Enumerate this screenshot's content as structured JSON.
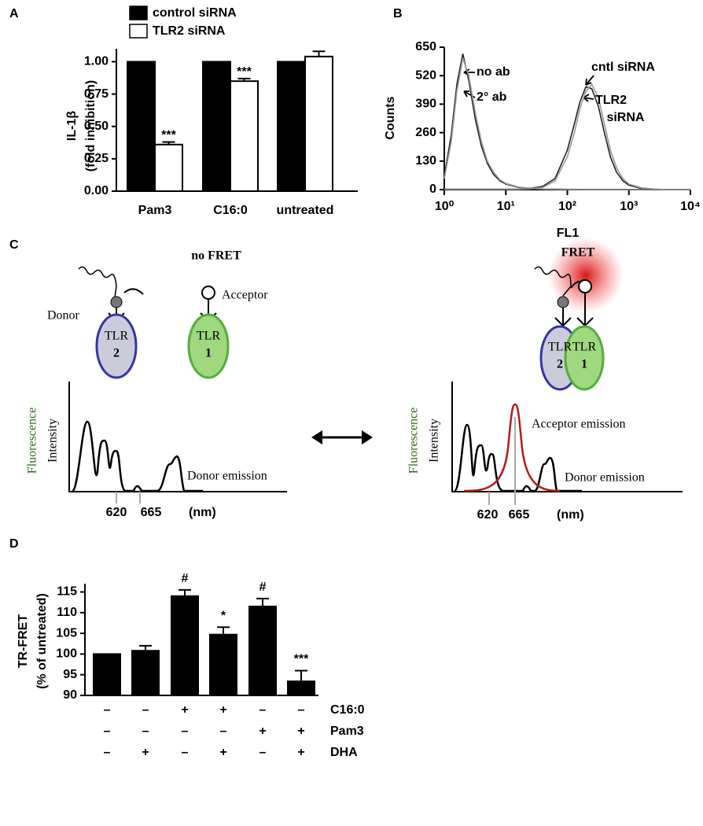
{
  "chart_data": [
    {
      "type": "bar",
      "panel_label": "A",
      "y_label": [
        "IL-1β",
        "(fold inhibition)"
      ],
      "categories": [
        "Pam3",
        "C16:0",
        "untreated"
      ],
      "series": [
        {
          "name": "control siRNA",
          "color": "#000000",
          "values": [
            1,
            1,
            1
          ]
        },
        {
          "name": "TLR2 siRNA",
          "color": "#ffffff",
          "values": [
            0.36,
            0.85,
            1.04
          ],
          "errors": [
            0.02,
            0.02,
            0.04
          ],
          "annotations": [
            "***",
            "***",
            null
          ]
        }
      ],
      "ylim": [
        0,
        1.1
      ],
      "yticks": [
        {
          "value": 0,
          "label": "0.00"
        },
        0.25,
        {
          "value": 0.5,
          "label": "0.50"
        },
        0.75,
        {
          "value": 1,
          "label": "1.00"
        }
      ]
    },
    {
      "type": "line",
      "panel_label": "B",
      "x_label": "FL1",
      "y_label": "Counts",
      "log_x": true,
      "x": [
        1,
        1.3,
        1.6,
        2,
        2.5,
        3.2,
        4,
        5,
        6.3,
        8,
        10,
        16,
        25,
        40,
        63,
        100,
        130,
        160,
        200,
        250,
        320,
        400,
        500,
        630,
        800,
        1000,
        1600,
        2500,
        4000,
        10000
      ],
      "series": [
        {
          "name": "no ab",
          "color": "#222222",
          "values": [
            60,
            250,
            480,
            620,
            500,
            320,
            200,
            120,
            70,
            40,
            25,
            10,
            5,
            3,
            2,
            1,
            1,
            0,
            0,
            0,
            0,
            0,
            0,
            0,
            0,
            0,
            0,
            0,
            0,
            0
          ]
        },
        {
          "name": "2° ab",
          "color": "#999999",
          "values": [
            50,
            220,
            450,
            600,
            520,
            350,
            220,
            130,
            80,
            45,
            28,
            12,
            6,
            3,
            2,
            1,
            0,
            0,
            0,
            0,
            0,
            0,
            0,
            0,
            0,
            0,
            0,
            0,
            0,
            0
          ]
        },
        {
          "name": "cntl siRNA",
          "color": "#222222",
          "values": [
            2,
            2,
            2,
            2,
            2,
            2,
            2,
            2,
            2,
            2,
            2,
            2,
            5,
            15,
            50,
            180,
            300,
            400,
            470,
            460,
            380,
            260,
            150,
            80,
            40,
            20,
            5,
            2,
            0,
            0
          ]
        },
        {
          "name": "TLR2 siRNA",
          "color": "#999999",
          "values": [
            2,
            2,
            2,
            2,
            2,
            2,
            2,
            2,
            2,
            2,
            2,
            2,
            4,
            10,
            40,
            150,
            260,
            370,
            450,
            480,
            420,
            300,
            180,
            100,
            50,
            25,
            8,
            3,
            0,
            0
          ]
        }
      ],
      "xlim": [
        1,
        10000
      ],
      "xticks": [
        {
          "value": 1,
          "label": "10⁰"
        },
        {
          "value": 10,
          "label": "10¹"
        },
        {
          "value": 100,
          "label": "10²"
        },
        {
          "value": 1000,
          "label": "10³"
        },
        {
          "value": 10000,
          "label": "10⁴"
        }
      ],
      "ylim": [
        0,
        650
      ],
      "yticks": [
        0,
        130,
        260,
        390,
        520,
        650
      ]
    },
    {
      "type": "bar",
      "panel_label": "D",
      "y_label": [
        "TR-FRET",
        "(% of untreated)"
      ],
      "categories": [
        null,
        null,
        null,
        null,
        null,
        null
      ],
      "series": [
        {
          "color": "#000000",
          "values": [
            100,
            100.8,
            114,
            104.7,
            111.5,
            93.4
          ],
          "errors": [
            null,
            1.2,
            1.5,
            1.8,
            1.9,
            2.6
          ],
          "annotations": [
            null,
            null,
            "#",
            "*",
            "#",
            "***"
          ]
        }
      ],
      "ylim": [
        90,
        117
      ],
      "yticks": [
        90,
        95,
        100,
        105,
        110,
        115
      ],
      "treatments": [
        {
          "label": "C16:0",
          "signs": [
            "–",
            "–",
            "+",
            "+",
            "–",
            "–"
          ]
        },
        {
          "label": "Pam3",
          "signs": [
            "–",
            "–",
            "–",
            "–",
            "+",
            "+"
          ]
        },
        {
          "label": "DHA",
          "signs": [
            "–",
            "+",
            "–",
            "+",
            "–",
            "+"
          ]
        }
      ]
    }
  ],
  "diagram": {
    "panel_label": "C",
    "left": {
      "title": "no FRET",
      "donor": "Donor",
      "acceptor": "Acceptor",
      "receptor_a": {
        "name": "TLR",
        "number": "2"
      },
      "receptor_b": {
        "name": "TLR",
        "number": "1"
      },
      "y_label": [
        "Fluorescence",
        "Intensity"
      ],
      "ticks": [
        "620",
        "665"
      ],
      "unit": "(nm)",
      "emission": "Donor emission"
    },
    "right": {
      "title": "FRET",
      "receptor_a": {
        "name": "TLR",
        "number": "2"
      },
      "receptor_b": {
        "name": "TLR",
        "number": "1"
      },
      "y_label": [
        "Fluorescence",
        "Intensity"
      ],
      "ticks": [
        "620",
        "665"
      ],
      "unit": "(nm)",
      "emission": "Donor emission",
      "emission_acceptor": "Acceptor emission"
    }
  }
}
